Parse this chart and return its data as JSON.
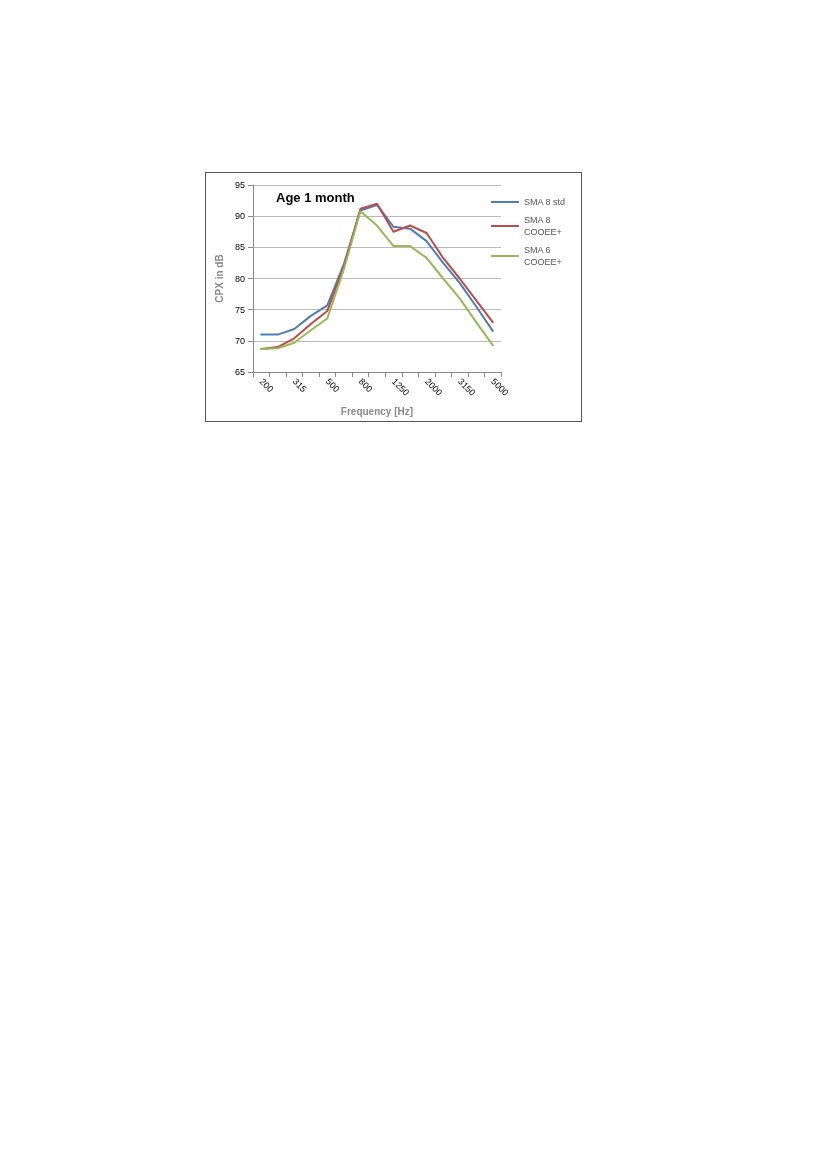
{
  "chart_data": {
    "type": "line",
    "annotations": [
      "Age 1 month"
    ],
    "xlabel": "Frequency [Hz]",
    "ylabel": "CPX in dB",
    "categories": [
      "200",
      null,
      "315",
      null,
      "500",
      null,
      "800",
      null,
      "1250",
      null,
      "2000",
      null,
      "3150",
      null,
      "5000"
    ],
    "series": [
      {
        "name": "SMA 8 std",
        "color": "#4a7ebb",
        "values": [
          71.0,
          71.0,
          71.9,
          74.0,
          75.7,
          82.3,
          90.9,
          91.8,
          88.3,
          88.0,
          86.0,
          82.5,
          79.3,
          75.5,
          71.6
        ]
      },
      {
        "name": "SMA 8 COOEE+",
        "color": "#be4b48",
        "values": [
          68.7,
          69.0,
          70.4,
          72.7,
          74.8,
          81.9,
          91.2,
          92.0,
          87.5,
          88.5,
          87.3,
          83.3,
          80.0,
          76.5,
          73.0
        ]
      },
      {
        "name": "SMA 6 COOEE+",
        "color": "#98b954",
        "values": [
          68.7,
          68.8,
          69.7,
          71.7,
          73.6,
          81.5,
          90.8,
          88.5,
          85.2,
          85.2,
          83.3,
          80.0,
          76.8,
          73.0,
          69.3
        ]
      }
    ],
    "ylim": [
      65,
      95
    ],
    "yticks": [
      65,
      70,
      75,
      80,
      85,
      90,
      95
    ],
    "grid": "y",
    "legend": "right",
    "marker": "none",
    "line_style": "solid"
  }
}
